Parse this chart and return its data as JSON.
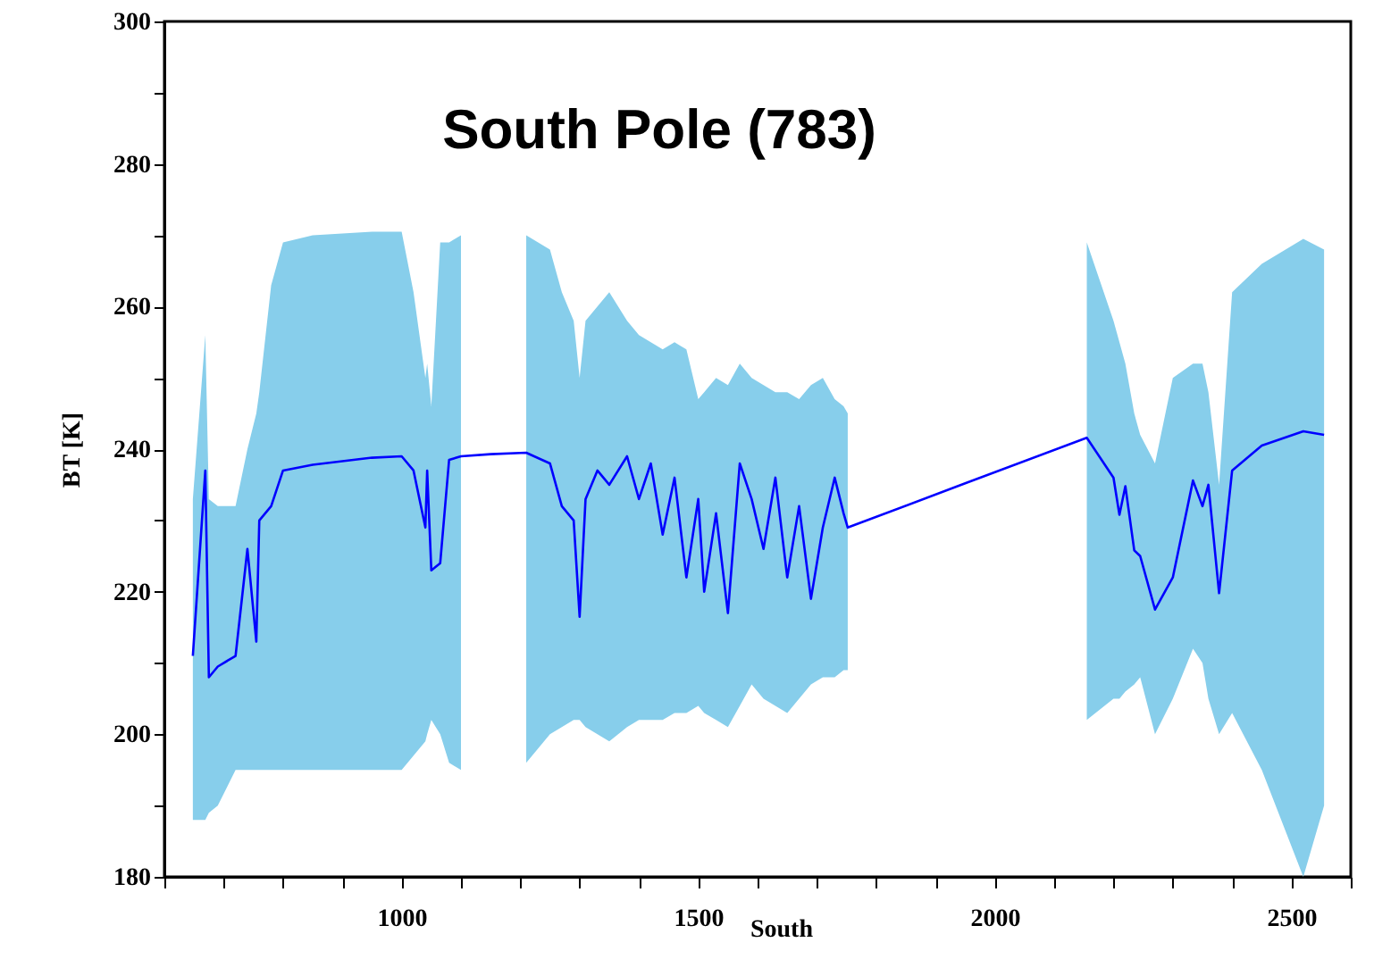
{
  "chart_data": {
    "type": "line",
    "title": "South Pole (783)",
    "xlabel": "South",
    "ylabel": "BT [K]",
    "xlim": [
      600,
      2600
    ],
    "ylim": [
      180,
      300
    ],
    "xticks": [
      {
        "value": 600,
        "label": null
      },
      {
        "value": 700,
        "label": null
      },
      {
        "value": 800,
        "label": null
      },
      {
        "value": 900,
        "label": null
      },
      1000,
      {
        "value": 1100,
        "label": null
      },
      {
        "value": 1200,
        "label": null
      },
      {
        "value": 1300,
        "label": null
      },
      {
        "value": 1400,
        "label": null
      },
      1500,
      {
        "value": 1600,
        "label": null
      },
      {
        "value": 1700,
        "label": null
      },
      {
        "value": 1800,
        "label": null
      },
      {
        "value": 1900,
        "label": null
      },
      2000,
      {
        "value": 2100,
        "label": null
      },
      {
        "value": 2200,
        "label": null
      },
      {
        "value": 2300,
        "label": null
      },
      {
        "value": 2400,
        "label": null
      },
      2500,
      {
        "value": 2600,
        "label": null
      }
    ],
    "yticks": [
      180,
      {
        "value": 190,
        "label": null
      },
      200,
      {
        "value": 210,
        "label": null
      },
      220,
      {
        "value": 230,
        "label": null
      },
      240,
      {
        "value": 250,
        "label": null
      },
      260,
      {
        "value": 270,
        "label": null
      },
      280,
      {
        "value": 290,
        "label": null
      },
      300
    ],
    "grid": false,
    "marker": "none",
    "line_style": "solid",
    "series": [
      {
        "color": "#0000ff",
        "x": [
          648,
          669,
          675,
          690,
          720,
          740,
          755,
          760,
          780,
          800,
          850,
          950,
          1000,
          1020,
          1040,
          1043,
          1050,
          1065,
          1080,
          1100,
          1150,
          1210,
          1250,
          1270,
          1290,
          1300,
          1310,
          1330,
          1350,
          1380,
          1400,
          1420,
          1440,
          1460,
          1480,
          1500,
          1510,
          1530,
          1550,
          1570,
          1590,
          1610,
          1630,
          1650,
          1670,
          1690,
          1710,
          1730,
          1745,
          1752,
          1950,
          2155,
          2200,
          2210,
          2220,
          2235,
          2245,
          2270,
          2300,
          2334,
          2350,
          2360,
          2378,
          2400,
          2450,
          2520,
          2555
        ],
        "values": [
          211,
          237,
          208,
          209.5,
          211,
          226,
          213,
          230,
          232,
          237,
          237.8,
          238.8,
          239,
          237,
          229,
          237,
          223,
          224,
          238.5,
          239,
          239.3,
          239.5,
          238,
          232,
          230,
          216.5,
          233,
          237,
          235,
          239,
          233,
          238,
          228,
          236,
          222,
          233,
          220,
          231,
          217,
          238,
          233,
          226,
          236,
          222,
          232,
          219,
          229,
          236,
          231,
          229,
          235.2,
          241.6,
          236,
          230.8,
          234.8,
          225.8,
          225,
          217.5,
          222,
          235.6,
          232,
          235,
          219.8,
          237,
          240.5,
          242.5,
          242
        ],
        "lower": [
          188,
          188,
          189,
          190,
          195,
          195,
          195,
          195,
          195,
          195,
          195,
          195,
          195,
          197,
          199,
          200,
          202,
          200,
          196,
          195,
          null,
          196,
          200,
          201,
          202,
          202,
          201,
          200,
          199,
          201,
          202,
          202,
          202,
          203,
          203,
          204,
          203,
          202,
          201,
          204,
          207,
          205,
          204,
          203,
          205,
          207,
          208,
          208,
          209,
          209,
          null,
          202,
          205,
          205,
          206,
          207,
          208,
          200,
          205,
          212,
          210,
          205,
          200,
          203,
          195,
          180,
          190
        ],
        "upper": [
          233,
          256,
          233,
          232,
          232,
          240,
          245,
          248,
          263,
          269,
          270,
          270.5,
          270.5,
          262,
          250,
          252,
          246,
          269,
          269,
          270,
          null,
          270,
          268,
          262,
          258,
          250,
          258,
          260,
          262,
          258,
          256,
          255,
          254,
          255,
          254,
          247,
          248,
          250,
          249,
          252,
          250,
          249,
          248,
          248,
          247,
          249,
          250,
          247,
          246,
          245,
          null,
          269,
          258,
          255,
          252,
          245,
          242,
          238,
          250,
          252,
          252,
          248,
          235,
          262,
          266,
          269.5,
          268
        ]
      },
      {
        "type": "area",
        "color": "#87ceeb"
      }
    ]
  }
}
